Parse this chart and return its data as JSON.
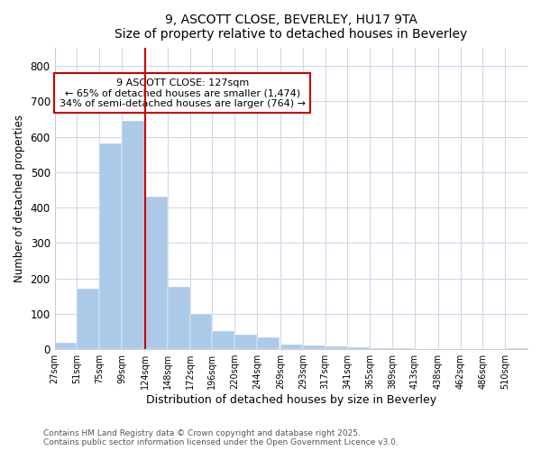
{
  "title1": "9, ASCOTT CLOSE, BEVERLEY, HU17 9TA",
  "title2": "Size of property relative to detached houses in Beverley",
  "xlabel": "Distribution of detached houses by size in Beverley",
  "ylabel": "Number of detached properties",
  "bin_labels": [
    "27sqm",
    "51sqm",
    "75sqm",
    "99sqm",
    "124sqm",
    "148sqm",
    "172sqm",
    "196sqm",
    "220sqm",
    "244sqm",
    "269sqm",
    "293sqm",
    "317sqm",
    "341sqm",
    "365sqm",
    "389sqm",
    "413sqm",
    "438sqm",
    "462sqm",
    "486sqm",
    "510sqm"
  ],
  "bin_edges": [
    27,
    51,
    75,
    99,
    124,
    148,
    172,
    196,
    220,
    244,
    269,
    293,
    317,
    341,
    365,
    389,
    413,
    438,
    462,
    486,
    510
  ],
  "bar_heights": [
    18,
    170,
    580,
    645,
    430,
    175,
    100,
    52,
    40,
    33,
    12,
    10,
    7,
    5,
    3,
    2,
    0,
    0,
    0,
    0,
    3
  ],
  "bar_color": "#adc9e8",
  "bar_edgecolor": "#adc9e8",
  "vline_x": 124,
  "vline_color": "#cc0000",
  "annotation_text": "9 ASCOTT CLOSE: 127sqm\n← 65% of detached houses are smaller (1,474)\n34% of semi-detached houses are larger (764) →",
  "annotation_box_color": "#cc0000",
  "ylim": [
    0,
    850
  ],
  "yticks": [
    0,
    100,
    200,
    300,
    400,
    500,
    600,
    700,
    800
  ],
  "footnote1": "Contains HM Land Registry data © Crown copyright and database right 2025.",
  "footnote2": "Contains public sector information licensed under the Open Government Licence v3.0.",
  "bg_color": "#ffffff",
  "plot_bg_color": "#ffffff",
  "grid_color": "#d0d8e8"
}
